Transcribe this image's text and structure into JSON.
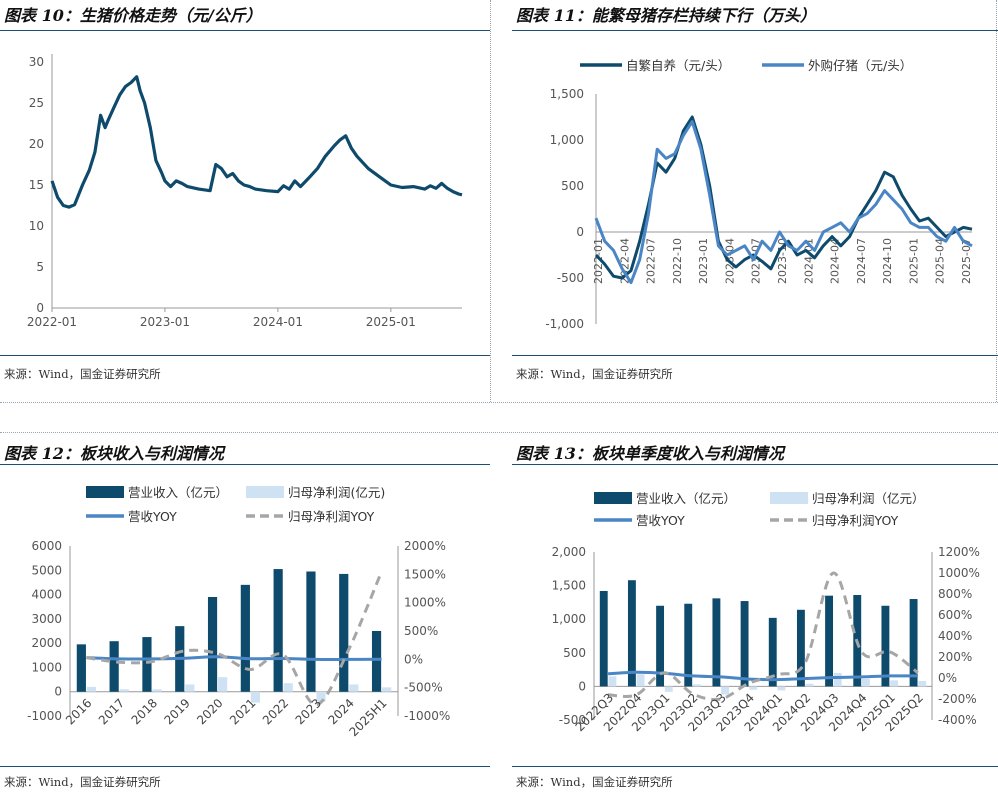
{
  "charts": [
    {
      "title": "图表 10：生猪价格走势（元/公斤）",
      "source": "来源：Wind，国金证券研究所",
      "chart_data": {
        "type": "line",
        "title": "",
        "xlabel": "",
        "ylabel": "",
        "ylim": [
          0,
          30
        ],
        "y_ticks": [
          "0",
          "5",
          "10",
          "15",
          "20",
          "25",
          "30"
        ],
        "x_tick_labels": [
          "2022-01",
          "2023-01",
          "2024-01",
          "2025-01"
        ],
        "grid": false,
        "color": "#0d4a6b",
        "x": [
          2022.0,
          2022.05,
          2022.1,
          2022.15,
          2022.2,
          2022.27,
          2022.33,
          2022.38,
          2022.43,
          2022.47,
          2022.5,
          2022.55,
          2022.6,
          2022.65,
          2022.7,
          2022.75,
          2022.78,
          2022.82,
          2022.87,
          2022.92,
          2022.97,
          2023.0,
          2023.05,
          2023.1,
          2023.15,
          2023.2,
          2023.3,
          2023.4,
          2023.45,
          2023.5,
          2023.55,
          2023.6,
          2023.65,
          2023.7,
          2023.75,
          2023.8,
          2023.9,
          2024.0,
          2024.05,
          2024.1,
          2024.15,
          2024.2,
          2024.27,
          2024.35,
          2024.42,
          2024.5,
          2024.55,
          2024.6,
          2024.65,
          2024.7,
          2024.8,
          2024.9,
          2025.0,
          2025.1,
          2025.2,
          2025.3,
          2025.35,
          2025.4,
          2025.45,
          2025.5,
          2025.55,
          2025.6,
          2025.63
        ],
        "series": [
          {
            "values": [
              15.5,
              13.5,
              12.5,
              12.3,
              12.6,
              15.0,
              16.8,
              19.0,
              23.5,
              22.0,
              23.0,
              24.5,
              26.0,
              27.0,
              27.5,
              28.2,
              26.5,
              25.0,
              22.0,
              18.0,
              16.5,
              15.5,
              14.8,
              15.5,
              15.2,
              14.8,
              14.5,
              14.3,
              17.5,
              17.0,
              16.0,
              16.4,
              15.5,
              15.0,
              14.8,
              14.5,
              14.3,
              14.2,
              14.9,
              14.5,
              15.5,
              14.8,
              15.8,
              17.0,
              18.5,
              19.8,
              20.5,
              21.0,
              19.5,
              18.5,
              17.0,
              16.0,
              15.0,
              14.7,
              14.8,
              14.5,
              14.9,
              14.6,
              15.2,
              14.6,
              14.2,
              13.9,
              13.8
            ]
          }
        ]
      }
    },
    {
      "title": "图表 11：能繁母猪存栏持续下行（万头）",
      "source": "来源：Wind，国金证券研究所",
      "chart_data": {
        "type": "line",
        "title": "",
        "xlabel": "",
        "ylabel": "",
        "ylim": [
          -1000,
          1500
        ],
        "y_ticks": [
          "1,500",
          "1,000",
          "500",
          "0",
          "-500",
          "-1,000"
        ],
        "grid": false,
        "legend_position": "top",
        "categories": [
          "2022-01",
          "2022-04",
          "2022-07",
          "2022-10",
          "2023-01",
          "2023-04",
          "2023-07",
          "2023-10",
          "2024-01",
          "2024-04",
          "2024-07",
          "2024-10",
          "2025-01",
          "2025-04",
          "2025-07"
        ],
        "x": [
          0,
          1,
          2,
          3,
          4,
          5,
          6,
          7,
          8,
          9,
          10,
          11,
          12,
          13,
          14,
          15,
          16,
          17,
          18,
          19,
          20,
          21,
          22,
          23,
          24,
          25,
          26,
          27,
          28,
          29,
          30,
          31,
          32,
          33,
          34,
          35,
          36,
          37,
          38,
          39,
          40,
          41,
          42,
          43
        ],
        "series": [
          {
            "name": "自繁自养（元/头）",
            "color": "#0d4a6b",
            "values": [
              -250,
              -350,
              -480,
              -500,
              -420,
              -100,
              300,
              750,
              650,
              800,
              1100,
              1250,
              950,
              500,
              -100,
              -300,
              -380,
              -300,
              -250,
              -320,
              -400,
              -200,
              -100,
              -250,
              -200,
              -280,
              -150,
              -50,
              -150,
              -50,
              150,
              300,
              450,
              650,
              600,
              400,
              250,
              120,
              150,
              50,
              -50,
              0,
              50,
              30
            ]
          },
          {
            "name": "外购仔猪（元/头）",
            "color": "#4a86c5",
            "values": [
              150,
              -100,
              -200,
              -400,
              -550,
              -300,
              200,
              900,
              800,
              850,
              1050,
              1200,
              900,
              400,
              -150,
              -250,
              -200,
              -150,
              -300,
              -100,
              -200,
              0,
              -150,
              -200,
              -100,
              -200,
              0,
              50,
              100,
              0,
              150,
              200,
              300,
              450,
              350,
              250,
              100,
              50,
              50,
              -50,
              -100,
              50,
              -100,
              -150
            ]
          }
        ]
      }
    },
    {
      "title": "图表 12：板块收入与利润情况",
      "source": "来源：Wind，国金证券研究所",
      "chart_data": {
        "type": "bar",
        "title": "",
        "xlabel": "",
        "ylabel": "",
        "ylim": [
          -1000,
          6000
        ],
        "y2lim": [
          -1000,
          2000
        ],
        "y_ticks": [
          "6000",
          "5000",
          "4000",
          "3000",
          "2000",
          "1000",
          "0",
          "-1000"
        ],
        "y2_ticks": [
          "2000%",
          "1500%",
          "1000%",
          "500%",
          "0%",
          "-500%",
          "-1000%"
        ],
        "grid": false,
        "legend_position": "top",
        "categories": [
          "2016",
          "2017",
          "2018",
          "2019",
          "2020",
          "2021",
          "2022",
          "2023",
          "2024",
          "2025H1"
        ],
        "series": [
          {
            "name": "营业收入（亿元）",
            "kind": "bar",
            "axis": "left",
            "color": "#0d4a6b",
            "values": [
              1950,
              2080,
              2250,
              2700,
              3900,
              4400,
              5050,
              4950,
              4850,
              2500
            ]
          },
          {
            "name": "归母净利润(亿元)",
            "kind": "bar",
            "axis": "left",
            "color": "#cfe2f3",
            "values": [
              200,
              100,
              100,
              300,
              600,
              -450,
              350,
              -400,
              300,
              180
            ]
          },
          {
            "name": "营收YOY",
            "kind": "line",
            "axis": "right",
            "color": "#4a86c5",
            "values": [
              30,
              7,
              8,
              20,
              45,
              12,
              14,
              -2,
              -2,
              0
            ]
          },
          {
            "name": "归母净利润YOY",
            "kind": "dashed-line",
            "axis": "right",
            "color": "#a6a6a6",
            "values": [
              30,
              -50,
              -40,
              150,
              100,
              -180,
              80,
              -800,
              175,
              1550
            ]
          }
        ]
      }
    },
    {
      "title": "图表 13：板块单季度收入与利润情况",
      "source": "来源：Wind，国金证券研究所",
      "chart_data": {
        "type": "bar",
        "title": "",
        "xlabel": "",
        "ylabel": "",
        "ylim": [
          -500,
          2000
        ],
        "y2lim": [
          -400,
          1200
        ],
        "y_ticks": [
          "2,000",
          "1,500",
          "1,000",
          "500",
          "0",
          "-500"
        ],
        "y2_ticks": [
          "1200%",
          "1000%",
          "800%",
          "600%",
          "400%",
          "200%",
          "0%",
          "-200%",
          "-400%"
        ],
        "grid": false,
        "legend_position": "top",
        "categories": [
          "2022Q3",
          "2022Q4",
          "2023Q1",
          "2023Q2",
          "2023Q3",
          "2023Q4",
          "2024Q1",
          "2024Q2",
          "2024Q3",
          "2024Q4",
          "2025Q1",
          "2025Q2"
        ],
        "series": [
          {
            "name": "营业收入（亿元）",
            "kind": "bar",
            "axis": "left",
            "color": "#0d4a6b",
            "values": [
              1420,
              1580,
              1200,
              1230,
              1310,
              1270,
              1020,
              1140,
              1350,
              1360,
              1200,
              1300
            ]
          },
          {
            "name": "归母净利润（亿元）",
            "kind": "bar",
            "axis": "left",
            "color": "#cfe2f3",
            "values": [
              150,
              180,
              -80,
              30,
              -120,
              -50,
              -60,
              40,
              200,
              110,
              90,
              80
            ]
          },
          {
            "name": "营收YOY",
            "kind": "line",
            "axis": "right",
            "color": "#4a86c5",
            "values": [
              40,
              55,
              45,
              20,
              10,
              -10,
              -15,
              -5,
              5,
              10,
              20,
              20
            ]
          },
          {
            "name": "归母净利润YOY",
            "kind": "dashed-line",
            "axis": "right",
            "color": "#a6a6a6",
            "values": [
              -160,
              -160,
              50,
              -150,
              -200,
              -50,
              30,
              150,
              1000,
              250,
              250,
              50
            ]
          }
        ]
      }
    }
  ]
}
